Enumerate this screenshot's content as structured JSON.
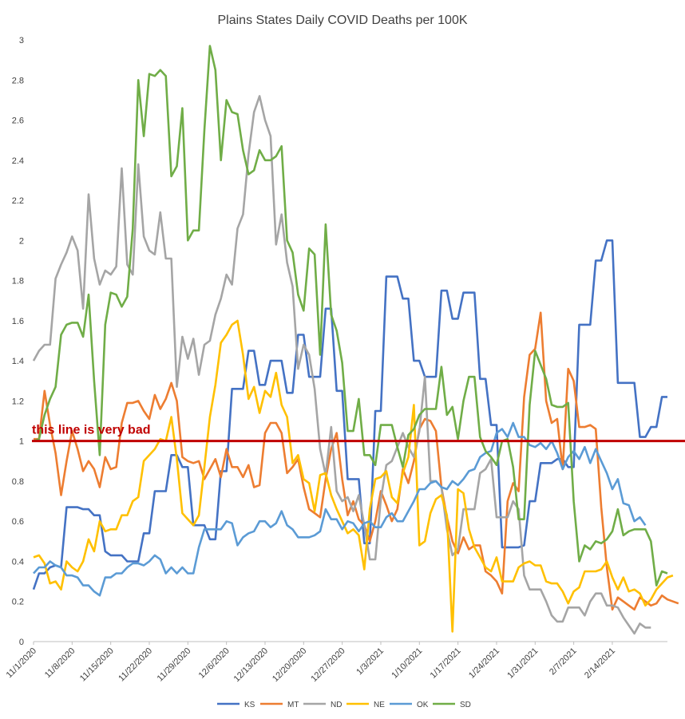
{
  "chart_data": {
    "type": "line",
    "title": "Plains States Daily COVID Deaths per 100K",
    "xlabel": "",
    "ylabel": "",
    "ylim": [
      0,
      3
    ],
    "yticks": [
      "0",
      "0.2",
      "0.4",
      "0.6",
      "0.8",
      "1",
      "1.2",
      "1.4",
      "1.6",
      "1.8",
      "2",
      "2.2",
      "2.4",
      "2.6",
      "2.8",
      "3"
    ],
    "x_tick_labels": [
      "11/1/2020",
      "11/8/2020",
      "11/15/2020",
      "11/22/2020",
      "11/29/2020",
      "12/6/2020",
      "12/13/2020",
      "12/20/2020",
      "12/27/2020",
      "1/3/2021",
      "1/10/2021",
      "1/17/2021",
      "1/24/2021",
      "1/31/2021",
      "2/7/2021",
      "2/14/2021"
    ],
    "x_start": "2020-11-01",
    "legend_position": "bottom",
    "grid": false,
    "reference_line": {
      "value": 1.0,
      "label": "this line is very bad",
      "color": "#c00000"
    },
    "series": [
      {
        "name": "KS",
        "color": "#4472c4",
        "values": [
          0.26,
          0.34,
          0.34,
          0.37,
          0.38,
          0.37,
          0.67,
          0.67,
          0.67,
          0.66,
          0.66,
          0.63,
          0.63,
          0.45,
          0.43,
          0.43,
          0.43,
          0.4,
          0.4,
          0.4,
          0.54,
          0.54,
          0.75,
          0.75,
          0.75,
          0.93,
          0.93,
          0.87,
          0.87,
          0.58,
          0.58,
          0.58,
          0.51,
          0.51,
          0.85,
          0.85,
          1.26,
          1.26,
          1.26,
          1.45,
          1.45,
          1.28,
          1.28,
          1.4,
          1.4,
          1.4,
          1.24,
          1.24,
          1.53,
          1.53,
          1.32,
          1.32,
          1.32,
          1.66,
          1.66,
          1.25,
          1.25,
          0.81,
          0.81,
          0.81,
          0.49,
          0.49,
          1.15,
          1.15,
          1.82,
          1.82,
          1.82,
          1.71,
          1.71,
          1.4,
          1.4,
          1.32,
          1.32,
          1.32,
          1.75,
          1.75,
          1.61,
          1.61,
          1.74,
          1.74,
          1.74,
          1.31,
          1.31,
          1.08,
          1.08,
          0.47,
          0.47,
          0.47,
          0.47,
          0.48,
          0.7,
          0.7,
          0.89,
          0.89,
          0.89,
          0.91,
          0.91,
          0.87,
          0.87,
          1.58,
          1.58,
          1.58,
          1.9,
          1.9,
          2.0,
          2.0,
          1.29,
          1.29,
          1.29,
          1.29,
          1.02,
          1.02,
          1.07,
          1.07,
          1.22,
          1.22
        ]
      },
      {
        "name": "MT",
        "color": "#ed7d31",
        "values": [
          1.01,
          1.01,
          1.25,
          1.08,
          0.94,
          0.73,
          0.9,
          1.05,
          0.96,
          0.85,
          0.9,
          0.86,
          0.77,
          0.92,
          0.86,
          0.87,
          1.09,
          1.19,
          1.19,
          1.2,
          1.15,
          1.11,
          1.23,
          1.16,
          1.21,
          1.29,
          1.2,
          0.92,
          0.9,
          0.89,
          0.9,
          0.81,
          0.86,
          0.91,
          0.82,
          0.96,
          0.87,
          0.87,
          0.82,
          0.88,
          0.77,
          0.78,
          1.04,
          1.09,
          1.09,
          1.04,
          0.84,
          0.87,
          0.91,
          0.77,
          0.66,
          0.64,
          0.62,
          0.81,
          0.96,
          1.04,
          0.81,
          0.63,
          0.7,
          0.61,
          0.58,
          0.5,
          0.6,
          0.75,
          0.68,
          0.6,
          0.66,
          0.86,
          0.79,
          0.9,
          1.06,
          1.11,
          1.1,
          1.05,
          0.77,
          0.62,
          0.5,
          0.44,
          0.52,
          0.46,
          0.48,
          0.48,
          0.35,
          0.33,
          0.3,
          0.24,
          0.7,
          0.79,
          0.75,
          1.22,
          1.43,
          1.46,
          1.64,
          1.2,
          1.09,
          1.11,
          0.86,
          1.36,
          1.3,
          1.07,
          1.07,
          1.08,
          1.06,
          0.67,
          0.37,
          0.16,
          0.22,
          0.2,
          0.18,
          0.16,
          0.22,
          0.2,
          0.18,
          0.19,
          0.23,
          0.21,
          0.2,
          0.19
        ]
      },
      {
        "name": "ND",
        "color": "#a5a5a5",
        "values": [
          1.4,
          1.45,
          1.48,
          1.48,
          1.81,
          1.88,
          1.94,
          2.02,
          1.95,
          1.66,
          2.23,
          1.91,
          1.78,
          1.85,
          1.83,
          1.87,
          2.36,
          1.88,
          1.83,
          2.38,
          2.02,
          1.95,
          1.93,
          2.14,
          1.91,
          1.91,
          1.27,
          1.52,
          1.41,
          1.51,
          1.33,
          1.48,
          1.5,
          1.63,
          1.71,
          1.83,
          1.78,
          2.06,
          2.13,
          2.43,
          2.64,
          2.72,
          2.6,
          2.52,
          1.98,
          2.13,
          1.89,
          1.77,
          1.36,
          1.48,
          1.43,
          1.26,
          0.96,
          0.83,
          1.07,
          0.75,
          0.7,
          0.72,
          0.65,
          0.73,
          0.58,
          0.41,
          0.41,
          0.71,
          0.88,
          0.9,
          0.97,
          1.04,
          0.97,
          0.92,
          1.05,
          1.32,
          0.8,
          0.8,
          0.77,
          0.56,
          0.43,
          0.46,
          0.66,
          0.66,
          0.66,
          0.84,
          0.86,
          0.91,
          0.62,
          0.62,
          0.62,
          0.7,
          0.66,
          0.33,
          0.26,
          0.26,
          0.26,
          0.2,
          0.13,
          0.1,
          0.1,
          0.17,
          0.17,
          0.17,
          0.13,
          0.2,
          0.24,
          0.24,
          0.18,
          0.18,
          0.17,
          0.12,
          0.08,
          0.04,
          0.09,
          0.07,
          0.07
        ]
      },
      {
        "name": "NE",
        "color": "#ffc000",
        "values": [
          0.42,
          0.43,
          0.39,
          0.29,
          0.3,
          0.26,
          0.4,
          0.37,
          0.35,
          0.4,
          0.51,
          0.45,
          0.6,
          0.55,
          0.56,
          0.56,
          0.63,
          0.63,
          0.7,
          0.72,
          0.9,
          0.93,
          0.96,
          1.01,
          1.0,
          1.12,
          0.91,
          0.64,
          0.61,
          0.58,
          0.63,
          0.87,
          1.12,
          1.28,
          1.49,
          1.53,
          1.58,
          1.6,
          1.43,
          1.21,
          1.27,
          1.14,
          1.25,
          1.22,
          1.34,
          1.18,
          1.12,
          0.89,
          0.93,
          0.81,
          0.79,
          0.65,
          0.83,
          0.84,
          0.73,
          0.66,
          0.6,
          0.54,
          0.56,
          0.53,
          0.36,
          0.66,
          0.81,
          0.82,
          0.85,
          0.72,
          0.69,
          0.84,
          0.92,
          1.18,
          0.48,
          0.5,
          0.64,
          0.71,
          0.73,
          0.63,
          0.05,
          0.76,
          0.74,
          0.56,
          0.47,
          0.42,
          0.37,
          0.35,
          0.42,
          0.3,
          0.3,
          0.3,
          0.37,
          0.39,
          0.4,
          0.38,
          0.38,
          0.3,
          0.29,
          0.29,
          0.25,
          0.19,
          0.25,
          0.27,
          0.35,
          0.35,
          0.35,
          0.36,
          0.4,
          0.32,
          0.26,
          0.32,
          0.25,
          0.26,
          0.24,
          0.18,
          0.21,
          0.26,
          0.29,
          0.32,
          0.33
        ]
      },
      {
        "name": "OK",
        "color": "#5b9bd5",
        "values": [
          0.34,
          0.37,
          0.37,
          0.4,
          0.38,
          0.37,
          0.33,
          0.33,
          0.32,
          0.28,
          0.28,
          0.25,
          0.23,
          0.32,
          0.32,
          0.34,
          0.34,
          0.37,
          0.39,
          0.39,
          0.38,
          0.4,
          0.43,
          0.41,
          0.34,
          0.37,
          0.34,
          0.37,
          0.34,
          0.34,
          0.47,
          0.56,
          0.56,
          0.56,
          0.56,
          0.6,
          0.59,
          0.48,
          0.52,
          0.54,
          0.55,
          0.6,
          0.6,
          0.57,
          0.59,
          0.65,
          0.58,
          0.56,
          0.52,
          0.52,
          0.52,
          0.53,
          0.55,
          0.66,
          0.61,
          0.61,
          0.56,
          0.6,
          0.59,
          0.55,
          0.59,
          0.6,
          0.57,
          0.57,
          0.62,
          0.64,
          0.6,
          0.6,
          0.65,
          0.7,
          0.76,
          0.76,
          0.79,
          0.8,
          0.77,
          0.76,
          0.8,
          0.78,
          0.81,
          0.85,
          0.86,
          0.92,
          0.94,
          0.95,
          1.04,
          1.06,
          1.02,
          1.09,
          1.02,
          1.02,
          0.98,
          0.97,
          0.99,
          0.96,
          1.0,
          0.94,
          0.86,
          0.92,
          0.95,
          0.91,
          0.97,
          0.89,
          0.96,
          0.9,
          0.84,
          0.76,
          0.81,
          0.69,
          0.68,
          0.6,
          0.62,
          0.58
        ]
      },
      {
        "name": "SD",
        "color": "#70ad47",
        "values": [
          1.0,
          1.01,
          1.13,
          1.21,
          1.27,
          1.53,
          1.58,
          1.59,
          1.59,
          1.52,
          1.73,
          1.3,
          0.93,
          1.58,
          1.74,
          1.73,
          1.67,
          1.72,
          2.06,
          2.8,
          2.52,
          2.83,
          2.82,
          2.85,
          2.82,
          2.32,
          2.37,
          2.66,
          2.0,
          2.05,
          2.05,
          2.55,
          2.97,
          2.85,
          2.4,
          2.7,
          2.64,
          2.63,
          2.45,
          2.33,
          2.35,
          2.45,
          2.4,
          2.4,
          2.42,
          2.47,
          2.0,
          1.94,
          1.73,
          1.65,
          1.96,
          1.93,
          1.43,
          2.08,
          1.63,
          1.55,
          1.39,
          1.05,
          1.05,
          1.21,
          0.93,
          0.93,
          0.88,
          1.08,
          1.08,
          1.08,
          0.97,
          0.87,
          1.03,
          1.06,
          1.13,
          1.16,
          1.16,
          1.16,
          1.37,
          1.13,
          1.17,
          1.01,
          1.2,
          1.32,
          1.32,
          1.02,
          0.95,
          0.92,
          0.88,
          1.0,
          1.01,
          0.87,
          0.61,
          0.61,
          1.18,
          1.45,
          1.38,
          1.31,
          1.18,
          1.17,
          1.17,
          1.19,
          0.7,
          0.4,
          0.48,
          0.46,
          0.5,
          0.49,
          0.51,
          0.55,
          0.66,
          0.53,
          0.55,
          0.56,
          0.56,
          0.56,
          0.5,
          0.28,
          0.35,
          0.34
        ]
      }
    ]
  }
}
